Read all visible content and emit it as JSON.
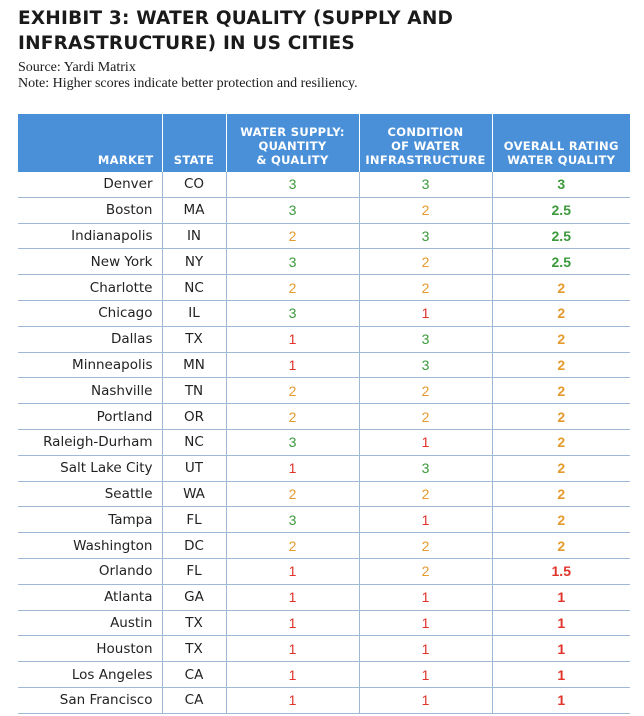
{
  "title": "EXHIBIT 3: WATER QUALITY (SUPPLY AND INFRASTRUCTURE) IN US CITIES",
  "source": "Source: Yardi Matrix",
  "note": "Note: Higher scores indicate better protection and resiliency.",
  "colors": {
    "header_bg": "#4a90d9",
    "green": "#3b9a3b",
    "orange": "#e59a2e",
    "red": "#e0332a"
  },
  "headers": {
    "market": "MARKET",
    "state": "STATE",
    "supply": [
      "WATER SUPPLY:",
      "QUANTITY",
      "& QUALITY"
    ],
    "infra": [
      "CONDITION",
      "OF WATER",
      "INFRASTRUCTURE"
    ],
    "overall": [
      "OVERALL RATING",
      "WATER QUALITY"
    ]
  },
  "rows": [
    {
      "market": "Denver",
      "state": "CO",
      "supply": "3",
      "infra": "3",
      "overall": "3"
    },
    {
      "market": "Boston",
      "state": "MA",
      "supply": "3",
      "infra": "2",
      "overall": "2.5"
    },
    {
      "market": "Indianapolis",
      "state": "IN",
      "supply": "2",
      "infra": "3",
      "overall": "2.5"
    },
    {
      "market": "New York",
      "state": "NY",
      "supply": "3",
      "infra": "2",
      "overall": "2.5"
    },
    {
      "market": "Charlotte",
      "state": "NC",
      "supply": "2",
      "infra": "2",
      "overall": "2"
    },
    {
      "market": "Chicago",
      "state": "IL",
      "supply": "3",
      "infra": "1",
      "overall": "2"
    },
    {
      "market": "Dallas",
      "state": "TX",
      "supply": "1",
      "infra": "3",
      "overall": "2"
    },
    {
      "market": "Minneapolis",
      "state": "MN",
      "supply": "1",
      "infra": "3",
      "overall": "2"
    },
    {
      "market": "Nashville",
      "state": "TN",
      "supply": "2",
      "infra": "2",
      "overall": "2"
    },
    {
      "market": "Portland",
      "state": "OR",
      "supply": "2",
      "infra": "2",
      "overall": "2"
    },
    {
      "market": "Raleigh-Durham",
      "state": "NC",
      "supply": "3",
      "infra": "1",
      "overall": "2"
    },
    {
      "market": "Salt Lake City",
      "state": "UT",
      "supply": "1",
      "infra": "3",
      "overall": "2"
    },
    {
      "market": "Seattle",
      "state": "WA",
      "supply": "2",
      "infra": "2",
      "overall": "2"
    },
    {
      "market": "Tampa",
      "state": "FL",
      "supply": "3",
      "infra": "1",
      "overall": "2"
    },
    {
      "market": "Washington",
      "state": "DC",
      "supply": "2",
      "infra": "2",
      "overall": "2"
    },
    {
      "market": "Orlando",
      "state": "FL",
      "supply": "1",
      "infra": "2",
      "overall": "1.5"
    },
    {
      "market": "Atlanta",
      "state": "GA",
      "supply": "1",
      "infra": "1",
      "overall": "1"
    },
    {
      "market": "Austin",
      "state": "TX",
      "supply": "1",
      "infra": "1",
      "overall": "1"
    },
    {
      "market": "Houston",
      "state": "TX",
      "supply": "1",
      "infra": "1",
      "overall": "1"
    },
    {
      "market": "Los Angeles",
      "state": "CA",
      "supply": "1",
      "infra": "1",
      "overall": "1"
    },
    {
      "market": "San Francisco",
      "state": "CA",
      "supply": "1",
      "infra": "1",
      "overall": "1"
    }
  ]
}
